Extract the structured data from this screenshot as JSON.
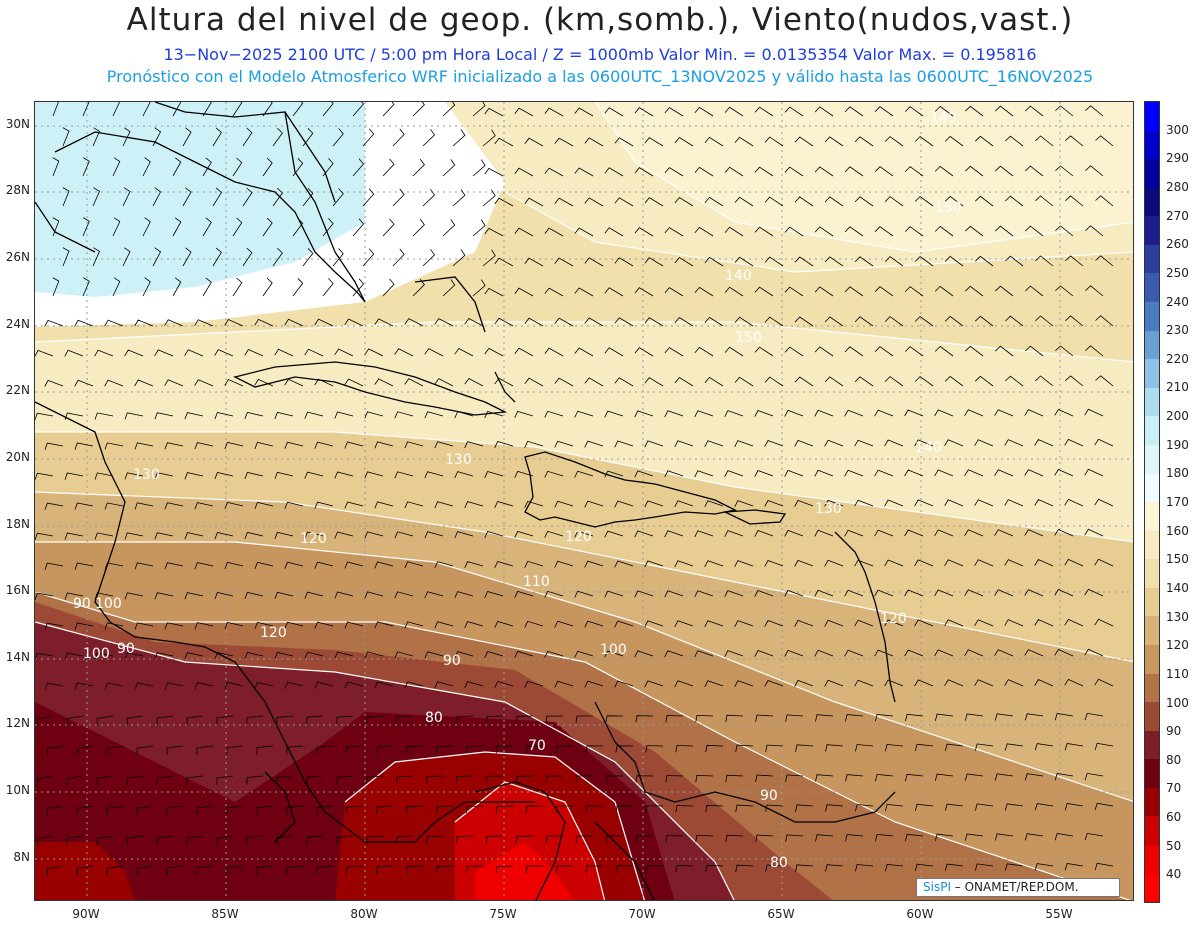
{
  "title": "Altura del nivel de geop. (km,somb.), Viento(nudos,vast.)",
  "subtitle1": "13−Nov−2025  2100 UTC / 5:00 pm Hora Local / Z = 1000mb  Valor Min. = 0.0135354  Valor Max. = 0.195816",
  "subtitle2": "Pronóstico con el Modelo Atmosferico WRF inicializado a las 0600UTC_13NOV2025 y válido hasta las  0600UTC_16NOV2025",
  "lat_labels": [
    "30N",
    "28N",
    "26N",
    "24N",
    "22N",
    "20N",
    "18N",
    "16N",
    "14N",
    "12N",
    "10N",
    "8N"
  ],
  "lon_labels": [
    "90W",
    "85W",
    "80W",
    "75W",
    "70W",
    "65W",
    "60W",
    "55W"
  ],
  "colorbar": {
    "levels": [
      "300",
      "290",
      "280",
      "270",
      "260",
      "250",
      "240",
      "230",
      "220",
      "210",
      "200",
      "190",
      "180",
      "170",
      "160",
      "150",
      "140",
      "130",
      "120",
      "110",
      "100",
      "90",
      "80",
      "70",
      "60",
      "50",
      "40"
    ],
    "colors": [
      "#0000ff",
      "#0000cc",
      "#00009e",
      "#0a0a7a",
      "#1c1c8a",
      "#2b3c9c",
      "#3a5cae",
      "#4a7cc0",
      "#6aa0d2",
      "#8ec2e4",
      "#b0dcef",
      "#c8eef6",
      "#dff7fb",
      "#eefcff",
      "#fbf4d6",
      "#f7ebc2",
      "#f1dfac",
      "#e7cd92",
      "#d9b47a",
      "#c7965e",
      "#b07246",
      "#9c4a35",
      "#7e1e2a",
      "#6e0012",
      "#990000",
      "#cc0000",
      "#ee0000",
      "#ff0000"
    ]
  },
  "contour_labels": [
    "140",
    "150",
    "150",
    "140",
    "140",
    "130",
    "130",
    "120",
    "130",
    "120",
    "120",
    "110",
    "100",
    "90",
    "80",
    "70",
    "90",
    "80",
    "120",
    "90",
    "100",
    "100",
    "90"
  ],
  "credit": {
    "brand": "SisPI",
    "rest": " – ONAMET/REP.DOM."
  }
}
